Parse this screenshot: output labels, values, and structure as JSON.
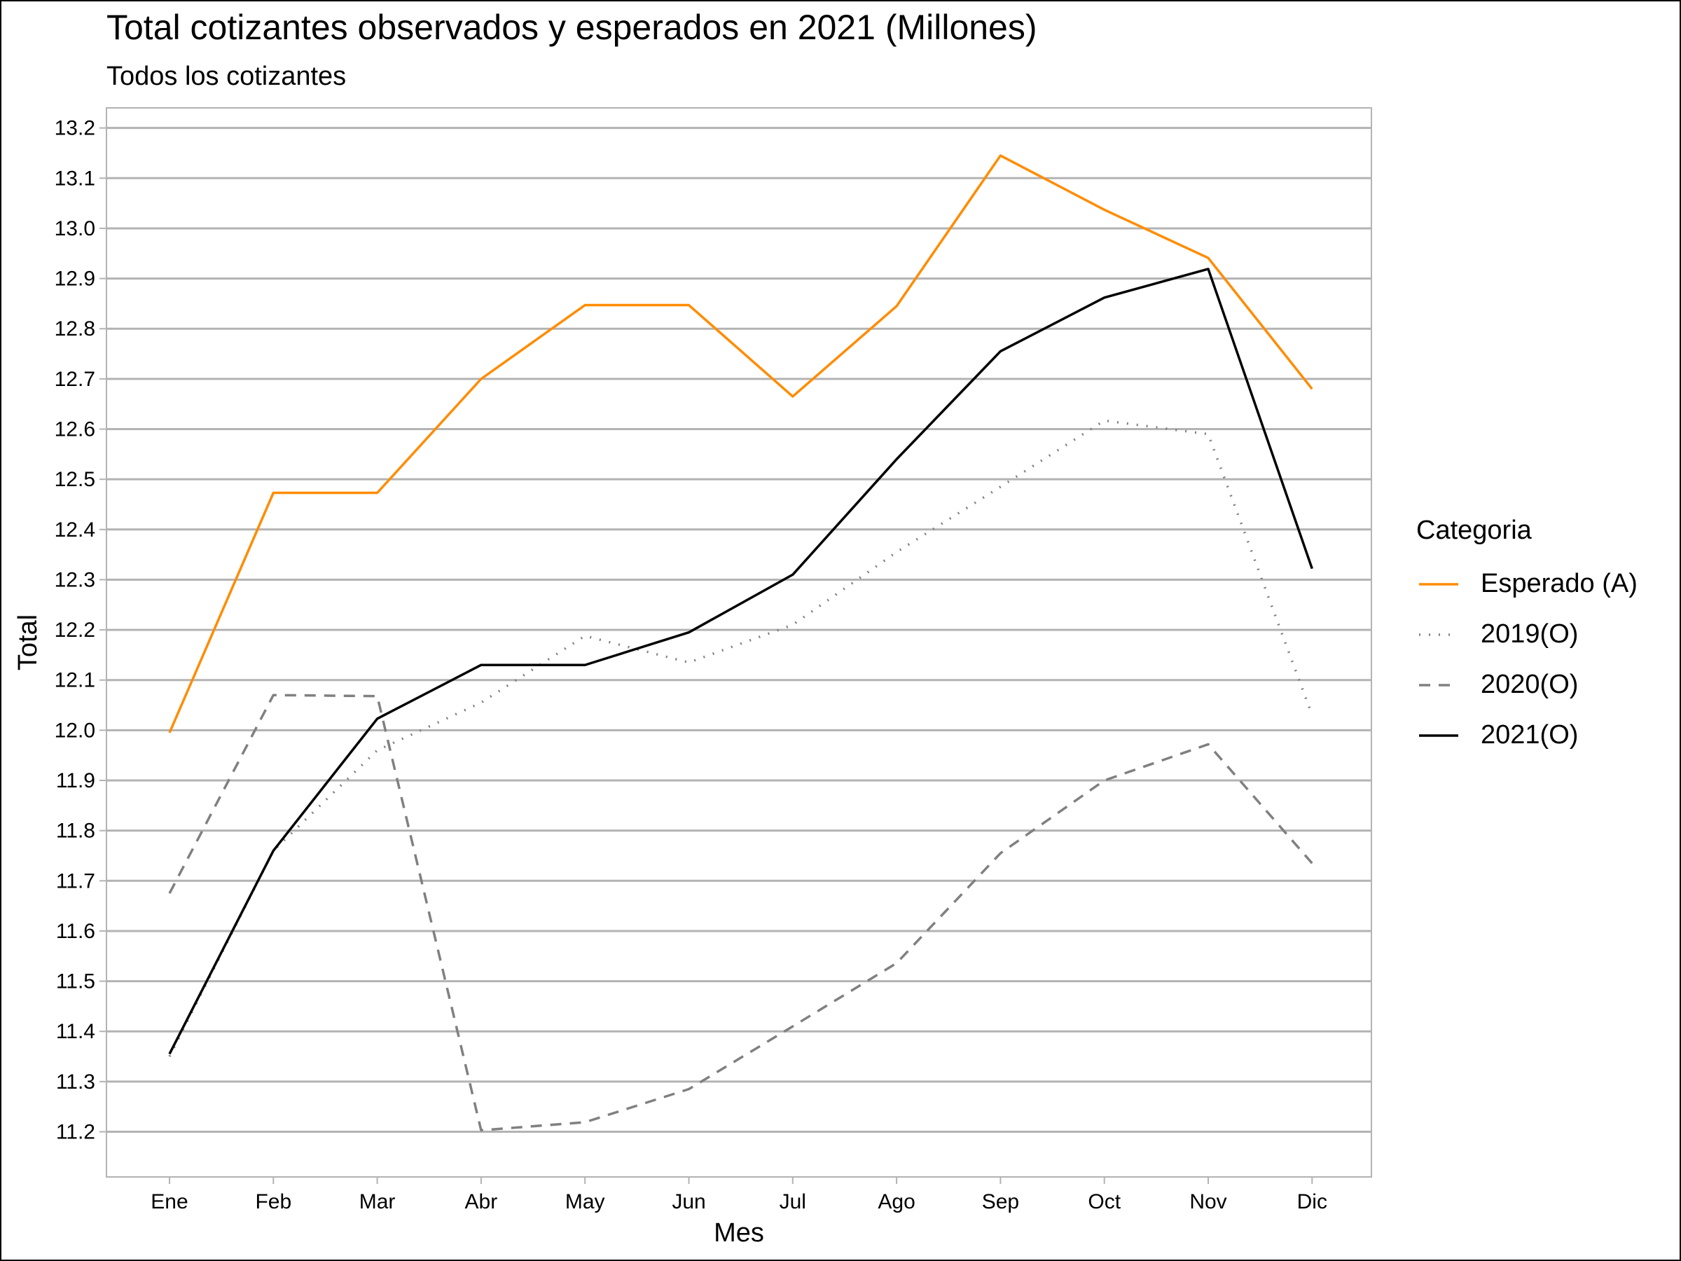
{
  "title": "Total cotizantes observados y esperados en 2021 (Millones)",
  "subtitle": "Todos los cotizantes",
  "chart_data": {
    "type": "line",
    "title": "Total cotizantes observados y esperados en 2021 (Millones)",
    "subtitle": "Todos los cotizantes",
    "xlabel": "Mes",
    "ylabel": "Total",
    "categories": [
      "Ene",
      "Feb",
      "Mar",
      "Abr",
      "May",
      "Jun",
      "Jul",
      "Ago",
      "Sep",
      "Oct",
      "Nov",
      "Dic"
    ],
    "ylim": [
      11.11,
      13.24
    ],
    "yticks": [
      11.2,
      11.3,
      11.4,
      11.5,
      11.6,
      11.7,
      11.8,
      11.9,
      12.0,
      12.1,
      12.2,
      12.3,
      12.4,
      12.5,
      12.6,
      12.7,
      12.8,
      12.9,
      13.0,
      13.1,
      13.2
    ],
    "grid": "horizontal",
    "legend_title": "Categoria",
    "legend_position": "right",
    "series": [
      {
        "name": "Esperado (A)",
        "color": "#ff8c00",
        "style": "solid",
        "values": [
          11.995,
          12.473,
          12.473,
          12.7,
          12.847,
          12.847,
          12.665,
          12.845,
          13.145,
          13.037,
          12.941,
          12.68
        ]
      },
      {
        "name": "2019(O)",
        "color": "#808080",
        "style": "dotted",
        "values": [
          11.35,
          11.76,
          11.96,
          12.055,
          12.188,
          12.135,
          12.21,
          12.355,
          12.485,
          12.617,
          12.59,
          12.03
        ]
      },
      {
        "name": "2020(O)",
        "color": "#808080",
        "style": "dashed",
        "values": [
          11.675,
          12.07,
          12.068,
          11.203,
          11.219,
          11.285,
          11.41,
          11.536,
          11.755,
          11.9,
          11.972,
          11.735
        ]
      },
      {
        "name": "2021(O)",
        "color": "#000000",
        "style": "solid",
        "values": [
          11.355,
          11.76,
          12.023,
          12.13,
          12.13,
          12.195,
          12.31,
          12.54,
          12.755,
          12.862,
          12.919,
          12.322
        ]
      }
    ]
  }
}
